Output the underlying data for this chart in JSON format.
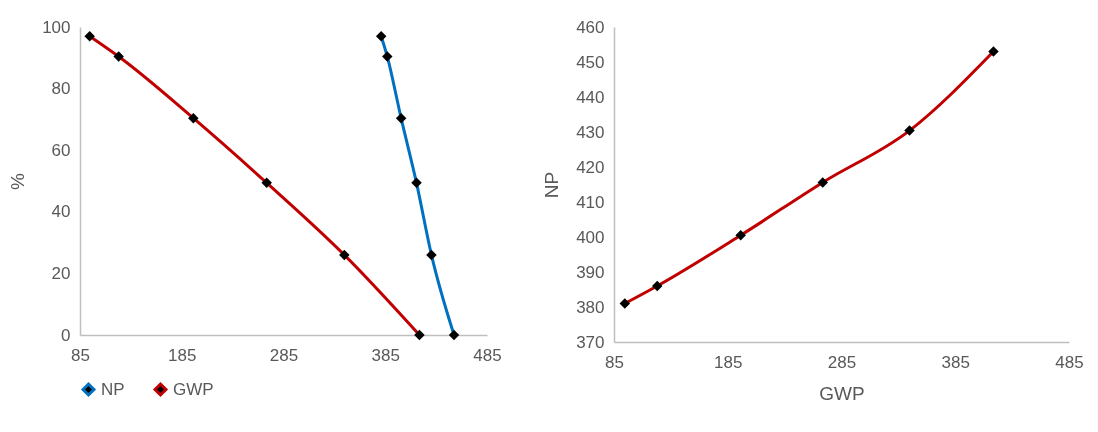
{
  "chart_data": [
    {
      "type": "line",
      "ylabel": "%",
      "xlim": [
        85,
        485
      ],
      "xticks": [
        85,
        185,
        285,
        385,
        485
      ],
      "ylim": [
        0,
        100
      ],
      "yticks": [
        0,
        20,
        40,
        60,
        80,
        100
      ],
      "marker": "diamond",
      "legend": "bottom",
      "grid": false,
      "series": [
        {
          "name": "NP",
          "color": "#0070c0",
          "x": [
            381,
            387,
            400.6,
            415.7,
            430.4,
            452.6
          ],
          "values": [
            97,
            90.4,
            70.4,
            49.4,
            26,
            0
          ]
        },
        {
          "name": "GWP",
          "color": "#c00000",
          "x": [
            94.5,
            123,
            196.4,
            268.5,
            344.8,
            418.6
          ],
          "values": [
            97,
            90.4,
            70.4,
            49.4,
            26,
            0
          ]
        }
      ]
    },
    {
      "type": "line",
      "xlabel": "GWP",
      "ylabel": "NP",
      "xlim": [
        85,
        485
      ],
      "xticks": [
        85,
        185,
        285,
        385,
        485
      ],
      "ylim": [
        370,
        460
      ],
      "yticks": [
        370,
        380,
        390,
        400,
        410,
        420,
        430,
        440,
        450,
        460
      ],
      "marker": "diamond",
      "grid": false,
      "series": [
        {
          "color": "#c00000",
          "x": [
            94.5,
            123,
            196.4,
            268.5,
            344.8,
            418.6
          ],
          "values": [
            381,
            386,
            400.5,
            415.6,
            430.4,
            453
          ]
        }
      ]
    }
  ]
}
